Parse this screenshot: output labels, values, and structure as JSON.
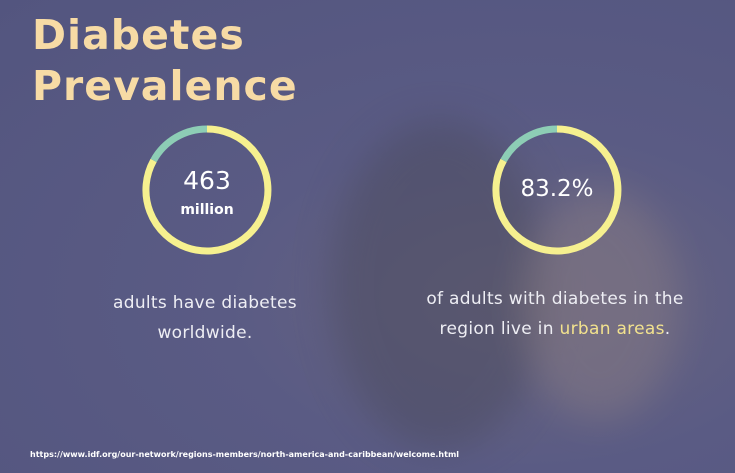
{
  "title": {
    "line1": "Diabetes",
    "line2": "Prevalence"
  },
  "stats": [
    {
      "value": "463",
      "unit": "million",
      "description": "adults have diabetes worldwide."
    },
    {
      "value": "83.2%",
      "description_before": "of adults with diabetes in the region live in",
      "highlight": "urban areas",
      "description_after": "."
    }
  ],
  "source": "https://www.idf.org/our-network/regions-members/north-america-and-caribbean/welcome.html"
}
